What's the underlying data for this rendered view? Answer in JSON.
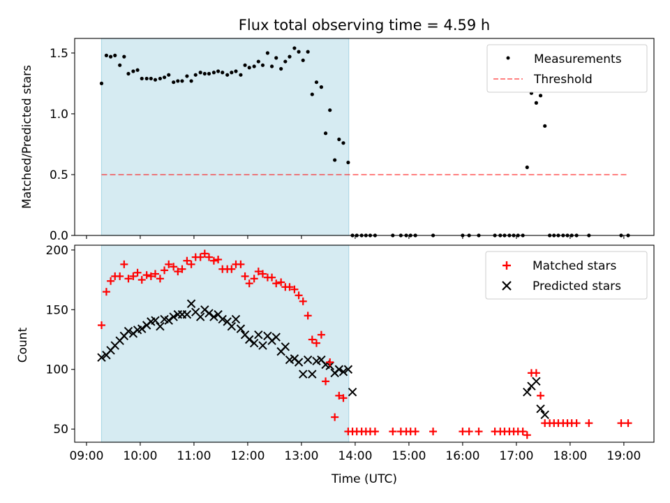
{
  "title": "Flux total observing time = 4.59 h",
  "colors": {
    "shade": "#add8e6",
    "threshold": "#ff0000",
    "measurement": "#000000",
    "matched": "#ff0000",
    "predicted": "#000000"
  },
  "chart_data": [
    {
      "type": "scatter",
      "ylabel": "Matched/Predicted stars",
      "ylim": [
        0,
        1.62
      ],
      "xlim": [
        8.78,
        19.56
      ],
      "yticks": [
        "0.0",
        "0.5",
        "1.0",
        "1.5"
      ],
      "shaded_interval": [
        9.28,
        13.88
      ],
      "legend": [
        "Measurements",
        "Threshold"
      ],
      "legend_position": "top-right",
      "threshold": {
        "value": 0.5,
        "x": [
          9.28,
          19.08
        ]
      },
      "x": [
        9.28,
        9.37,
        9.45,
        9.53,
        9.62,
        9.7,
        9.78,
        9.87,
        9.95,
        10.03,
        10.12,
        10.2,
        10.28,
        10.37,
        10.45,
        10.53,
        10.62,
        10.7,
        10.78,
        10.87,
        10.95,
        11.03,
        11.12,
        11.2,
        11.28,
        11.37,
        11.45,
        11.53,
        11.62,
        11.7,
        11.78,
        11.87,
        11.95,
        12.03,
        12.12,
        12.2,
        12.28,
        12.37,
        12.45,
        12.53,
        12.62,
        12.7,
        12.78,
        12.87,
        12.95,
        13.03,
        13.12,
        13.2,
        13.28,
        13.37,
        13.45,
        13.53,
        13.62,
        13.7,
        13.78,
        13.87,
        13.95,
        14.03,
        14.12,
        14.2,
        14.28,
        14.37,
        14.7,
        14.85,
        14.95,
        15.03,
        15.12,
        15.45,
        16.0,
        16.12,
        16.3,
        16.6,
        16.7,
        16.78,
        16.87,
        16.95,
        17.03,
        17.12,
        17.2,
        17.28,
        17.37,
        17.45,
        17.53,
        17.62,
        17.7,
        17.78,
        17.87,
        17.95,
        18.03,
        18.12,
        18.35,
        18.95,
        19.08
      ],
      "series": [
        {
          "name": "Measurements",
          "values": [
            1.25,
            1.48,
            1.47,
            1.48,
            1.4,
            1.47,
            1.33,
            1.35,
            1.36,
            1.29,
            1.29,
            1.29,
            1.28,
            1.29,
            1.3,
            1.32,
            1.26,
            1.27,
            1.27,
            1.31,
            1.27,
            1.32,
            1.34,
            1.33,
            1.33,
            1.34,
            1.35,
            1.34,
            1.32,
            1.34,
            1.35,
            1.32,
            1.4,
            1.38,
            1.39,
            1.43,
            1.4,
            1.5,
            1.39,
            1.46,
            1.37,
            1.43,
            1.47,
            1.54,
            1.51,
            1.44,
            1.51,
            1.16,
            1.26,
            1.22,
            0.84,
            1.03,
            0.62,
            0.79,
            0.76,
            0.6,
            0.0,
            0.0,
            0.0,
            0.0,
            0.0,
            0.0,
            0.0,
            0.0,
            0.0,
            0.0,
            0.0,
            0.0,
            0.0,
            0.0,
            0.0,
            0.0,
            0.0,
            0.0,
            0.0,
            0.0,
            0.0,
            0.0,
            0.56,
            1.17,
            1.09,
            1.15,
            0.9,
            0.0,
            0.0,
            0.0,
            0.0,
            0.0,
            0.0,
            0.0,
            0.0,
            0.0,
            0.0
          ]
        }
      ]
    },
    {
      "type": "scatter",
      "ylabel": "Count",
      "xlabel": "Time (UTC)",
      "ylim": [
        39,
        204
      ],
      "xlim": [
        8.78,
        19.56
      ],
      "yticks": [
        "50",
        "100",
        "150",
        "200"
      ],
      "xtick_values": [
        9,
        10,
        11,
        12,
        13,
        14,
        15,
        16,
        17,
        18,
        19
      ],
      "xtick_labels": [
        "09:00",
        "10:00",
        "11:00",
        "12:00",
        "13:00",
        "14:00",
        "15:00",
        "16:00",
        "17:00",
        "18:00",
        "19:00"
      ],
      "shaded_interval": [
        9.28,
        13.88
      ],
      "legend": [
        "Matched stars",
        "Predicted stars"
      ],
      "legend_position": "top-right",
      "series": [
        {
          "name": "Matched stars",
          "x": [
            9.28,
            9.37,
            9.45,
            9.53,
            9.62,
            9.7,
            9.78,
            9.87,
            9.95,
            10.03,
            10.12,
            10.2,
            10.28,
            10.37,
            10.45,
            10.53,
            10.62,
            10.7,
            10.78,
            10.87,
            10.95,
            11.03,
            11.12,
            11.2,
            11.28,
            11.37,
            11.45,
            11.53,
            11.62,
            11.7,
            11.78,
            11.87,
            11.95,
            12.03,
            12.12,
            12.2,
            12.28,
            12.37,
            12.45,
            12.53,
            12.62,
            12.7,
            12.78,
            12.87,
            12.95,
            13.03,
            13.12,
            13.2,
            13.28,
            13.37,
            13.45,
            13.53,
            13.62,
            13.7,
            13.78,
            13.87,
            13.95,
            14.03,
            14.12,
            14.2,
            14.28,
            14.37,
            14.7,
            14.85,
            14.95,
            15.03,
            15.12,
            15.45,
            16.0,
            16.12,
            16.3,
            16.6,
            16.7,
            16.78,
            16.87,
            16.95,
            17.03,
            17.12,
            17.2,
            17.28,
            17.37,
            17.45,
            17.53,
            17.62,
            17.7,
            17.78,
            17.87,
            17.95,
            18.03,
            18.12,
            18.35,
            18.95,
            19.08
          ],
          "y": [
            137,
            165,
            174,
            178,
            178,
            188,
            176,
            178,
            181,
            175,
            179,
            178,
            180,
            176,
            183,
            188,
            186,
            182,
            184,
            191,
            188,
            194,
            194,
            197,
            194,
            191,
            192,
            184,
            184,
            184,
            188,
            188,
            178,
            172,
            176,
            182,
            180,
            177,
            177,
            172,
            173,
            169,
            169,
            167,
            162,
            157,
            145,
            125,
            122,
            129,
            90,
            106,
            60,
            78,
            76,
            48,
            48,
            48,
            48,
            48,
            48,
            48,
            48,
            48,
            48,
            48,
            48,
            48,
            48,
            48,
            48,
            48,
            48,
            48,
            48,
            48,
            48,
            48,
            45,
            97,
            97,
            78,
            55,
            55,
            55,
            55,
            55,
            55,
            55,
            55,
            55,
            55,
            55
          ]
        },
        {
          "name": "Predicted stars",
          "x": [
            9.28,
            9.37,
            9.45,
            9.53,
            9.62,
            9.7,
            9.78,
            9.87,
            9.95,
            10.03,
            10.12,
            10.2,
            10.28,
            10.37,
            10.45,
            10.53,
            10.62,
            10.7,
            10.78,
            10.87,
            10.95,
            11.03,
            11.12,
            11.2,
            11.28,
            11.37,
            11.45,
            11.53,
            11.62,
            11.7,
            11.78,
            11.87,
            11.95,
            12.03,
            12.12,
            12.2,
            12.28,
            12.37,
            12.45,
            12.53,
            12.62,
            12.7,
            12.78,
            12.87,
            12.95,
            13.03,
            13.12,
            13.2,
            13.28,
            13.37,
            13.45,
            13.53,
            13.62,
            13.7,
            13.78,
            13.87,
            13.95,
            17.2,
            17.28,
            17.37,
            17.45,
            17.53
          ],
          "y": [
            110,
            112,
            116,
            120,
            124,
            128,
            132,
            130,
            133,
            134,
            137,
            140,
            141,
            136,
            142,
            141,
            144,
            146,
            146,
            146,
            155,
            148,
            144,
            150,
            147,
            144,
            146,
            142,
            140,
            136,
            142,
            134,
            129,
            125,
            122,
            129,
            120,
            128,
            124,
            127,
            115,
            119,
            108,
            109,
            106,
            96,
            108,
            96,
            107,
            108,
            104,
            103,
            97,
            100,
            98,
            100,
            81,
            81,
            86,
            90,
            67,
            62
          ]
        }
      ]
    }
  ]
}
